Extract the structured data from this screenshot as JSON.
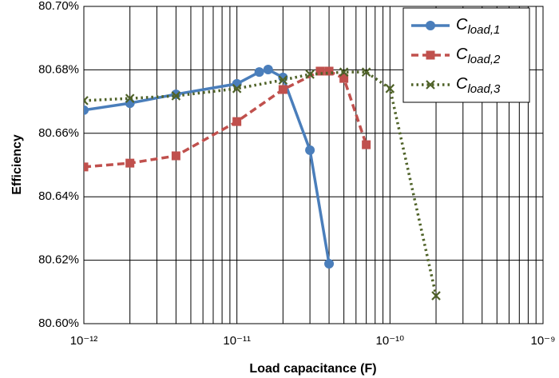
{
  "chart_data": {
    "type": "line",
    "x_label": "Load capacitance (F)",
    "y_label": "Efficiency",
    "xscale": "log",
    "xlim": [
      1e-12,
      1e-09
    ],
    "xticks": [
      {
        "value": 1e-12,
        "label": "10⁻¹²"
      },
      {
        "value": 1e-11,
        "label": "10⁻¹¹"
      },
      {
        "value": 1e-10,
        "label": "10⁻¹⁰"
      },
      {
        "value": 1e-09,
        "label": "10⁻⁹"
      }
    ],
    "ylim": [
      80.6,
      80.7
    ],
    "yticks": [
      {
        "value": 80.6,
        "label": "80.60%"
      },
      {
        "value": 80.62,
        "label": "80.62%"
      },
      {
        "value": 80.64,
        "label": "80.64%"
      },
      {
        "value": 80.66,
        "label": "80.66%"
      },
      {
        "value": 80.68,
        "label": "80.68%"
      },
      {
        "value": 80.7,
        "label": "80.70%"
      }
    ],
    "grid": true,
    "legend": "upper right",
    "series": [
      {
        "name": "Cload,1",
        "color": "#4a7ebb",
        "marker": "circle",
        "dash": "solid",
        "x": [
          1e-12,
          2e-12,
          4e-12,
          1e-11,
          1.4e-11,
          1.6e-11,
          2e-11,
          3e-11,
          4e-11
        ],
        "values": [
          80.6673,
          80.6695,
          80.6723,
          80.6756,
          80.6793,
          80.6801,
          80.6776,
          80.6547,
          80.6189
        ]
      },
      {
        "name": "Cload,2",
        "color": "#c0504d",
        "marker": "square",
        "dash": "dashed",
        "x": [
          1e-12,
          2e-12,
          4e-12,
          1e-11,
          2e-11,
          3.5e-11,
          4e-11,
          5e-11,
          7e-11
        ],
        "values": [
          80.6494,
          80.6506,
          80.6529,
          80.6637,
          80.6738,
          80.6796,
          80.6796,
          80.6773,
          80.6564
        ]
      },
      {
        "name": "Cload,3",
        "color": "#4f6228",
        "marker": "x",
        "dash": "dotted",
        "x": [
          1e-12,
          2e-12,
          4e-12,
          1e-11,
          2e-11,
          3e-11,
          5e-11,
          7e-11,
          1e-10,
          2e-10
        ],
        "values": [
          80.6703,
          80.671,
          80.6718,
          80.6741,
          80.6768,
          80.6786,
          80.6793,
          80.6793,
          80.6741,
          80.6088
        ]
      }
    ]
  }
}
